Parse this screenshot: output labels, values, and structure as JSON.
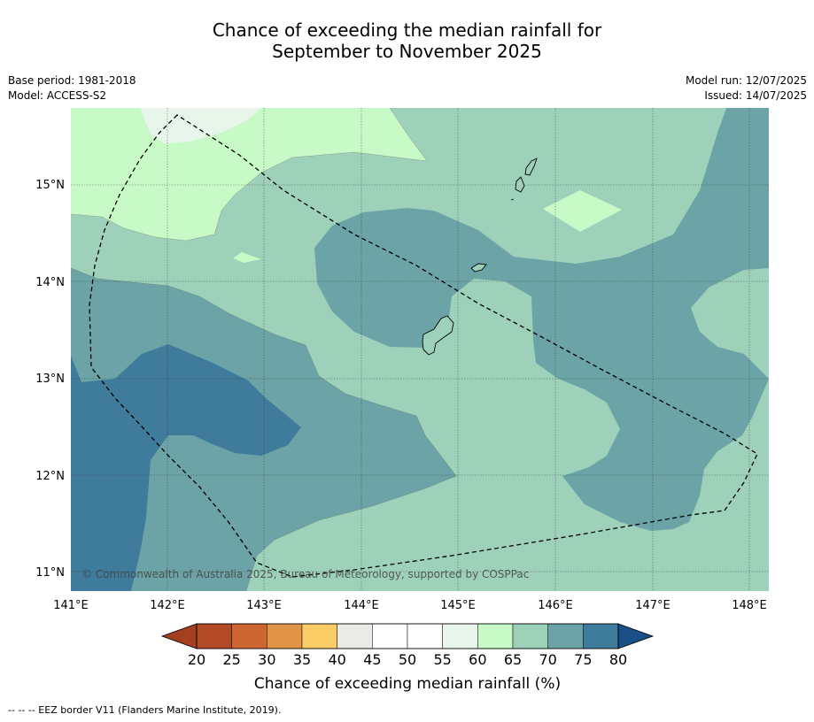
{
  "header": {
    "title_line1": "Chance of exceeding the median rainfall for",
    "title_line2": "September to November 2025",
    "base_period": "Base period: 1981-2018",
    "model": "Model: ACCESS-S2",
    "model_run": "Model run: 12/07/2025",
    "issued": "Issued: 14/07/2025"
  },
  "map": {
    "lon_labels": [
      "141°E",
      "142°E",
      "143°E",
      "144°E",
      "145°E",
      "146°E",
      "147°E",
      "148°E"
    ],
    "lat_labels": [
      "15°N",
      "14°N",
      "13°N",
      "12°N",
      "11°N"
    ],
    "lon_range": [
      141,
      148.2
    ],
    "lat_range": [
      10.8,
      15.8
    ],
    "copyright": "© Commonwealth of Australia 2025, Bureau of Meteorology, supported by COSPPac",
    "band_colors": {
      "60-65": "#c8fac8",
      "55-60": "#e8f5ea",
      "65-70": "#9dd1b9",
      "70-75": "#6ca3a7",
      "75-80": "#3f7b9b"
    }
  },
  "legend": {
    "ticks": [
      "20",
      "25",
      "30",
      "35",
      "40",
      "45",
      "50",
      "55",
      "60",
      "65",
      "70",
      "75",
      "80"
    ],
    "colors": [
      "#b34a26",
      "#cd6631",
      "#e29446",
      "#fbcd67",
      "#eaeae6",
      "#ffffff",
      "#ffffff",
      "#e8f5ea",
      "#c8fac8",
      "#9dd1b9",
      "#6ca3a7",
      "#3f7b9b"
    ],
    "low_extend_color": "#a2401f",
    "high_extend_color": "#1a4f87",
    "label": "Chance of exceeding median rainfall (%)"
  },
  "footnote": "-- -- -- EEZ border V11 (Flanders Marine Institute, 2019)."
}
